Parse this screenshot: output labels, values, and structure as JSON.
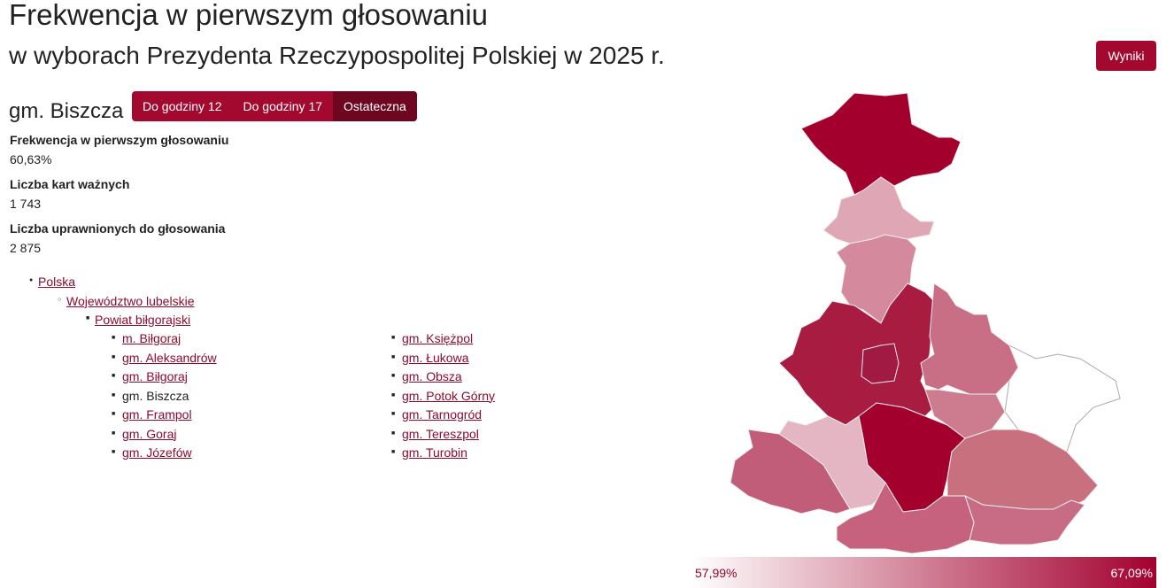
{
  "header": {
    "title": "Frekwencja w pierwszym głosowaniu",
    "subtitle": "w wyborach Prezydenta Rzeczypospolitej Polskiej w 2025 r.",
    "button": "Wyniki"
  },
  "unit": {
    "name": "gm. Biszcza",
    "tabs": [
      "Do godziny 12",
      "Do godziny 17",
      "Ostateczna"
    ]
  },
  "stats": [
    {
      "label": "Frekwencja w pierwszym głosowaniu",
      "value": "60,63%"
    },
    {
      "label": "Liczba kart ważnych",
      "value": "1 743"
    },
    {
      "label": "Liczba uprawnionych do głosowania",
      "value": "2 875"
    }
  ],
  "breadcrumb": [
    "Polska",
    "Województwo lubelskie",
    "Powiat biłgorajski"
  ],
  "gminy": [
    "m. Biłgoraj",
    "gm. Aleksandrów",
    "gm. Biłgoraj",
    "gm. Biszcza",
    "gm. Frampol",
    "gm. Goraj",
    "gm. Józefów",
    "gm. Księżpol",
    "gm. Łukowa",
    "gm. Obsza",
    "gm. Potok Górny",
    "gm. Tarnogród",
    "gm. Tereszpol",
    "gm. Turobin"
  ],
  "legend": {
    "min": "57,99%",
    "max": "67,09%"
  }
}
